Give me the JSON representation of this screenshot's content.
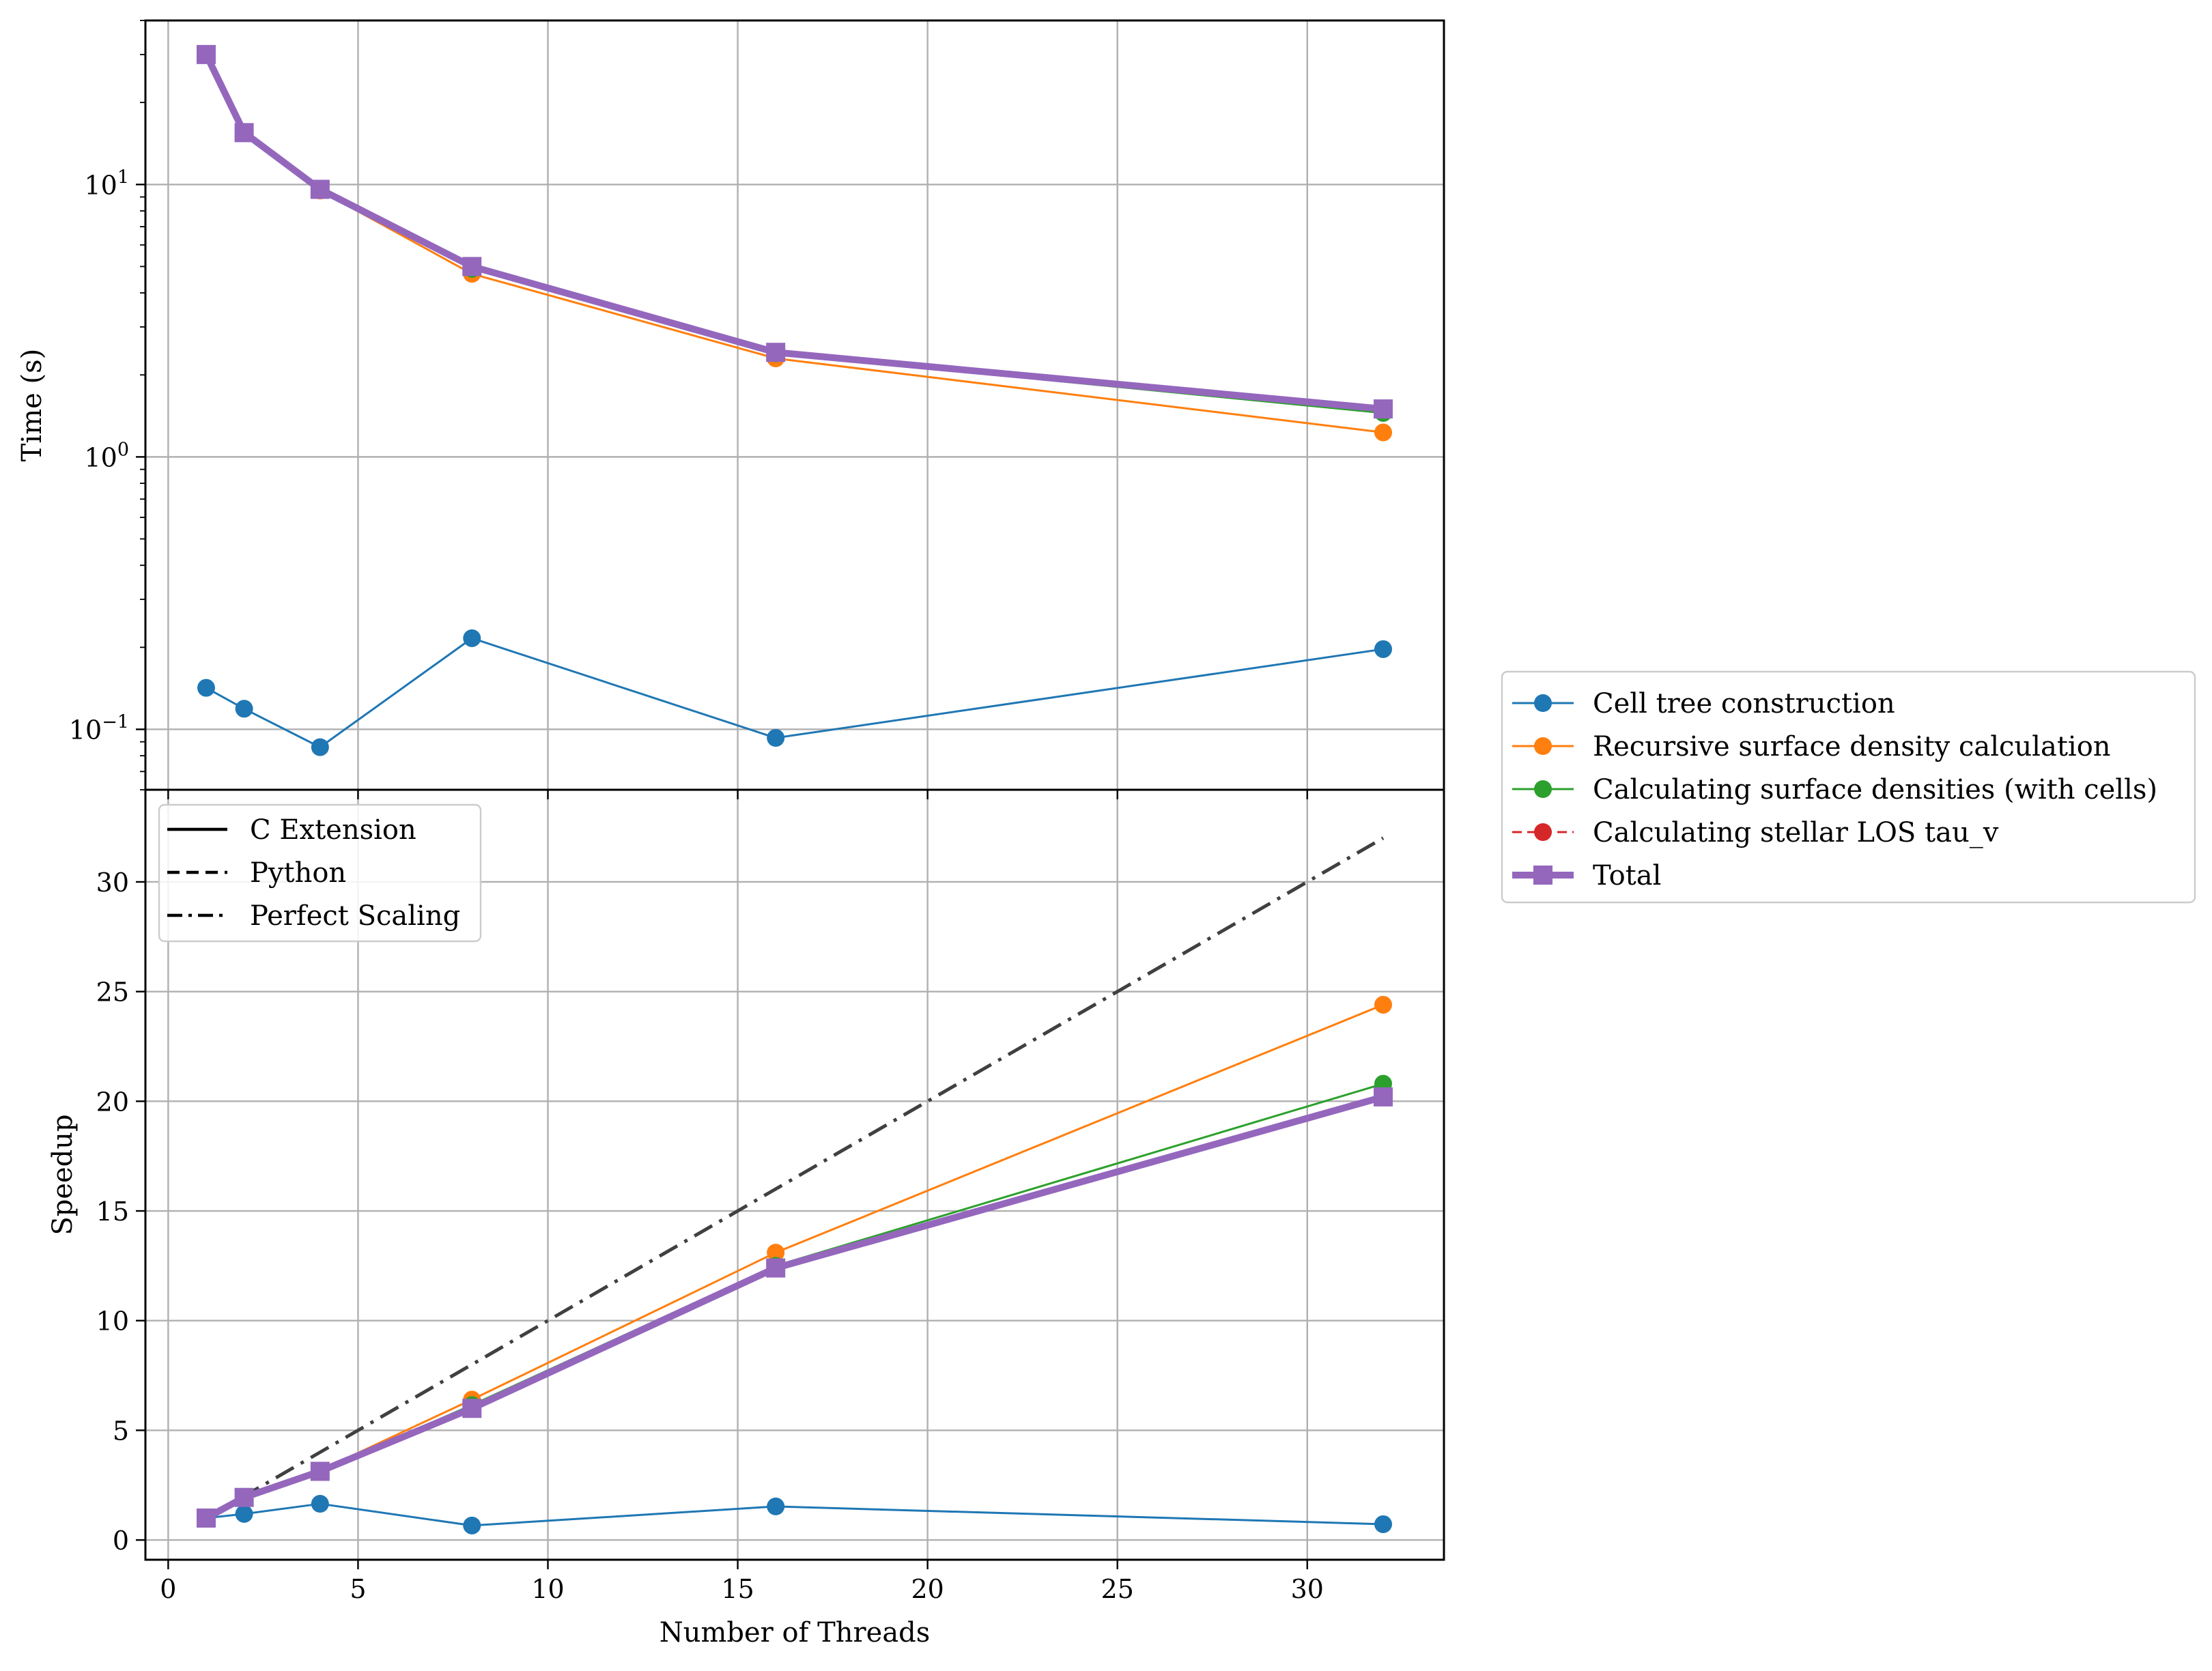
{
  "chart_data": [
    {
      "type": "line",
      "ylabel": "Time (s)",
      "yscale": "log",
      "ylim": [
        0.06,
        40
      ],
      "xlim": [
        -0.6,
        33.6
      ],
      "y_tick_labels": [
        {
          "value": 0.1,
          "base": "10",
          "exp": "−1"
        },
        {
          "value": 1,
          "base": "10",
          "exp": "0"
        },
        {
          "value": 10,
          "base": "10",
          "exp": "1"
        }
      ],
      "grid": true,
      "x": [
        1,
        2,
        4,
        8,
        16,
        32
      ],
      "series": [
        {
          "name": "Cell tree construction",
          "color": "#1f77b4",
          "values": [
            0.142,
            0.119,
            0.086,
            0.216,
            0.093,
            0.197
          ]
        },
        {
          "name": "Recursive surface density calculation",
          "color": "#ff7f0e",
          "values": [
            30,
            15.5,
            9.5,
            4.7,
            2.3,
            1.23
          ]
        },
        {
          "name": "Calculating surface densities (with cells)",
          "color": "#2ca02c",
          "values": [
            30,
            15.5,
            9.6,
            4.9,
            2.4,
            1.45
          ]
        },
        {
          "name": "Total",
          "color": "#9467bd",
          "values": [
            30,
            15.5,
            9.6,
            5.0,
            2.42,
            1.5
          ]
        }
      ]
    },
    {
      "type": "line",
      "xlabel": "Number of Threads",
      "ylabel": "Speedup",
      "ylim": [
        -0.9,
        34.2
      ],
      "xlim": [
        -0.6,
        33.6
      ],
      "x_ticks": [
        0,
        5,
        10,
        15,
        20,
        25,
        30
      ],
      "y_ticks": [
        0,
        5,
        10,
        15,
        20,
        25,
        30
      ],
      "grid": true,
      "x": [
        1,
        2,
        4,
        8,
        16,
        32
      ],
      "series": [
        {
          "name": "Cell tree construction",
          "color": "#1f77b4",
          "values": [
            1.0,
            1.19,
            1.65,
            0.66,
            1.53,
            0.72
          ]
        },
        {
          "name": "Recursive surface density calculation",
          "color": "#ff7f0e",
          "values": [
            1.0,
            1.94,
            3.16,
            6.4,
            13.1,
            24.4
          ]
        },
        {
          "name": "Calculating surface densities (with cells)",
          "color": "#2ca02c",
          "values": [
            1.0,
            1.94,
            3.15,
            6.15,
            12.5,
            20.8
          ]
        },
        {
          "name": "Total",
          "color": "#9467bd",
          "values": [
            1.0,
            1.94,
            3.13,
            6.0,
            12.4,
            20.2
          ]
        }
      ],
      "perfect_scaling": {
        "x": [
          1,
          32
        ],
        "values": [
          1,
          32
        ],
        "color": "#404040"
      },
      "style_legend": {
        "placement": "upper-left",
        "entries": [
          {
            "label": "C Extension",
            "style": "solid"
          },
          {
            "label": "Python",
            "style": "dashed"
          },
          {
            "label": "Perfect Scaling",
            "style": "dashdot"
          }
        ]
      }
    }
  ],
  "legend": {
    "placement": "right",
    "entries": [
      {
        "label": "Cell tree construction",
        "color": "#1f77b4",
        "marker": "circle",
        "style": "solid"
      },
      {
        "label": "Recursive surface density calculation",
        "color": "#ff7f0e",
        "marker": "circle",
        "style": "solid"
      },
      {
        "label": "Calculating surface densities (with cells)",
        "color": "#2ca02c",
        "marker": "circle",
        "style": "solid"
      },
      {
        "label": "Calculating stellar LOS tau_v",
        "color": "#d62728",
        "marker": "circle",
        "style": "dashed"
      },
      {
        "label": "Total",
        "color": "#9467bd",
        "marker": "square",
        "style": "solid"
      }
    ]
  }
}
